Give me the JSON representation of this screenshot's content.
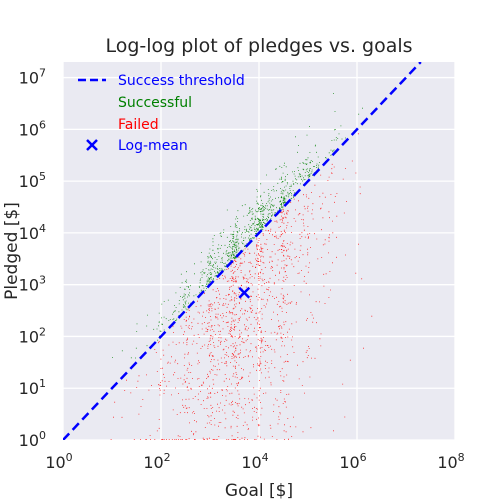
{
  "chart_data": {
    "type": "scatter",
    "title": "Log-log plot of pledges vs. goals",
    "xlabel": "Goal [$]",
    "ylabel": "Pledged [$]",
    "xscale": "log",
    "yscale": "log",
    "xlim": [
      1,
      100000000
    ],
    "ylim": [
      1,
      20000000
    ],
    "grid": true,
    "background": "#EAEAF2",
    "x_ticks": [
      {
        "base": "10",
        "exp": "0",
        "value": 1
      },
      {
        "base": "10",
        "exp": "2",
        "value": 100
      },
      {
        "base": "10",
        "exp": "4",
        "value": 10000
      },
      {
        "base": "10",
        "exp": "6",
        "value": 1000000
      },
      {
        "base": "10",
        "exp": "8",
        "value": 100000000
      }
    ],
    "y_ticks": [
      {
        "base": "10",
        "exp": "0",
        "value": 1
      },
      {
        "base": "10",
        "exp": "1",
        "value": 10
      },
      {
        "base": "10",
        "exp": "2",
        "value": 100
      },
      {
        "base": "10",
        "exp": "3",
        "value": 1000
      },
      {
        "base": "10",
        "exp": "4",
        "value": 10000
      },
      {
        "base": "10",
        "exp": "5",
        "value": 100000
      },
      {
        "base": "10",
        "exp": "6",
        "value": 1000000
      },
      {
        "base": "10",
        "exp": "7",
        "value": 10000000
      }
    ],
    "legend_position": "top-left",
    "series": [
      {
        "name": "Success threshold",
        "kind": "line",
        "style": "dashed",
        "color": "#0000FF",
        "points": [
          [
            1,
            1
          ],
          [
            20000000,
            20000000
          ]
        ]
      },
      {
        "name": "Successful",
        "kind": "scatter",
        "color": "#008000",
        "description_region": "pledged >= goal"
      },
      {
        "name": "Failed",
        "kind": "scatter",
        "color": "#FF0000",
        "description_region": "pledged < goal"
      },
      {
        "name": "Log-mean",
        "kind": "marker",
        "marker": "x",
        "color": "#0000FF",
        "points": [
          [
            5000,
            700
          ]
        ]
      }
    ]
  }
}
